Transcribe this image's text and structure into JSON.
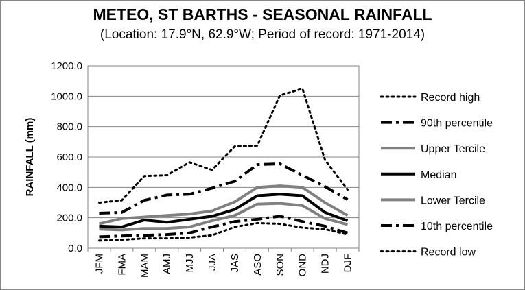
{
  "chart_data": {
    "type": "line",
    "title": "METEO, ST BARTHS - SEASONAL RAINFALL",
    "subtitle": "(Location: 17.9°N, 62.9°W; Period of record: 1971-2014)",
    "xlabel": "",
    "ylabel": "RAINFALL (mm)",
    "ylim": [
      0,
      1200
    ],
    "ytick_values": [
      0,
      200,
      400,
      600,
      800,
      1000,
      1200
    ],
    "ytick_labels": [
      "0.0",
      "200.0",
      "400.0",
      "600.0",
      "800.0",
      "1000.0",
      "1200.0"
    ],
    "grid": true,
    "legend_position": "right",
    "categories": [
      "JFM",
      "FMA",
      "MAM",
      "AMJ",
      "MJJ",
      "JJA",
      "JAS",
      "ASO",
      "SON",
      "OND",
      "NDJ",
      "DJF"
    ],
    "series": [
      {
        "name": "Record high",
        "color": "#000000",
        "style": "dotted",
        "width": 3,
        "values": [
          300,
          315,
          475,
          480,
          565,
          515,
          670,
          675,
          1005,
          1050,
          580,
          385
        ]
      },
      {
        "name": "90th percentile",
        "color": "#000000",
        "style": "dashdot",
        "width": 4,
        "values": [
          230,
          235,
          315,
          350,
          355,
          395,
          440,
          550,
          555,
          480,
          405,
          320
        ]
      },
      {
        "name": "Upper Tercile",
        "color": "#808080",
        "style": "solid",
        "width": 4,
        "values": [
          160,
          195,
          205,
          215,
          225,
          245,
          305,
          400,
          410,
          400,
          300,
          215
        ]
      },
      {
        "name": "Median",
        "color": "#000000",
        "style": "solid",
        "width": 4,
        "values": [
          145,
          140,
          185,
          170,
          190,
          210,
          255,
          345,
          355,
          345,
          235,
          180
        ]
      },
      {
        "name": "Lower Tercile",
        "color": "#808080",
        "style": "solid",
        "width": 4,
        "values": [
          125,
          120,
          130,
          130,
          140,
          180,
          215,
          290,
          295,
          280,
          195,
          155
        ]
      },
      {
        "name": "10th percentile",
        "color": "#000000",
        "style": "dashdot",
        "width": 4,
        "values": [
          75,
          80,
          85,
          90,
          100,
          140,
          175,
          190,
          210,
          175,
          145,
          100
        ]
      },
      {
        "name": "Record low",
        "color": "#000000",
        "style": "dotted",
        "width": 3,
        "values": [
          50,
          55,
          65,
          65,
          70,
          85,
          140,
          165,
          160,
          135,
          125,
          90
        ]
      }
    ]
  }
}
